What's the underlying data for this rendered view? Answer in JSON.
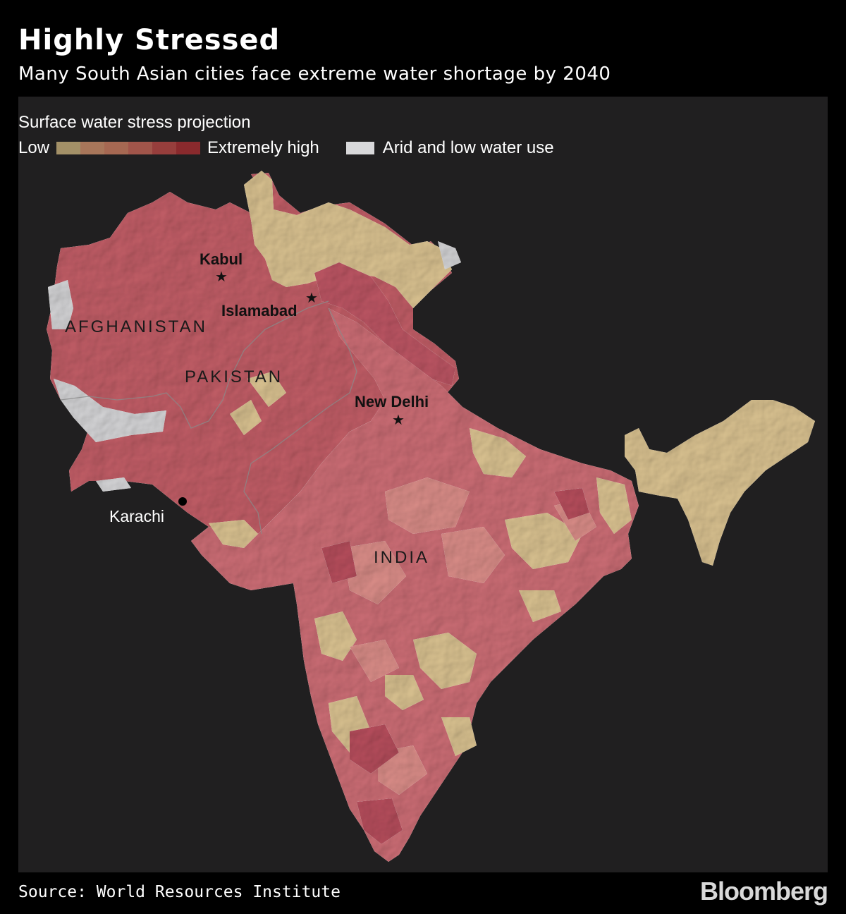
{
  "title": "Highly Stressed",
  "subtitle": "Many South Asian cities face extreme water shortage by 2040",
  "legend": {
    "title": "Surface water stress projection",
    "low_label": "Low",
    "high_label": "Extremely high",
    "arid_label": "Arid and low water use",
    "scale_colors": [
      "#a39067",
      "#a8765a",
      "#a66852",
      "#a1554a",
      "#973e3c",
      "#8a2a2d"
    ],
    "arid_color": "#d8d8da"
  },
  "map": {
    "countries": {
      "afghanistan": "AFGHANISTAN",
      "pakistan": "PAKISTAN",
      "india": "INDIA"
    },
    "cities": {
      "kabul": "Kabul",
      "islamabad": "Islamabad",
      "new_delhi": "New Delhi",
      "karachi": "Karachi"
    },
    "colors": {
      "background": "#201f20",
      "high_stress": "#c45f68",
      "medium_stress": "#d98884",
      "low_stress": "#ddc593",
      "arid": "#d8d8da"
    }
  },
  "source": "Source: World Resources Institute",
  "brand": "Bloomberg"
}
